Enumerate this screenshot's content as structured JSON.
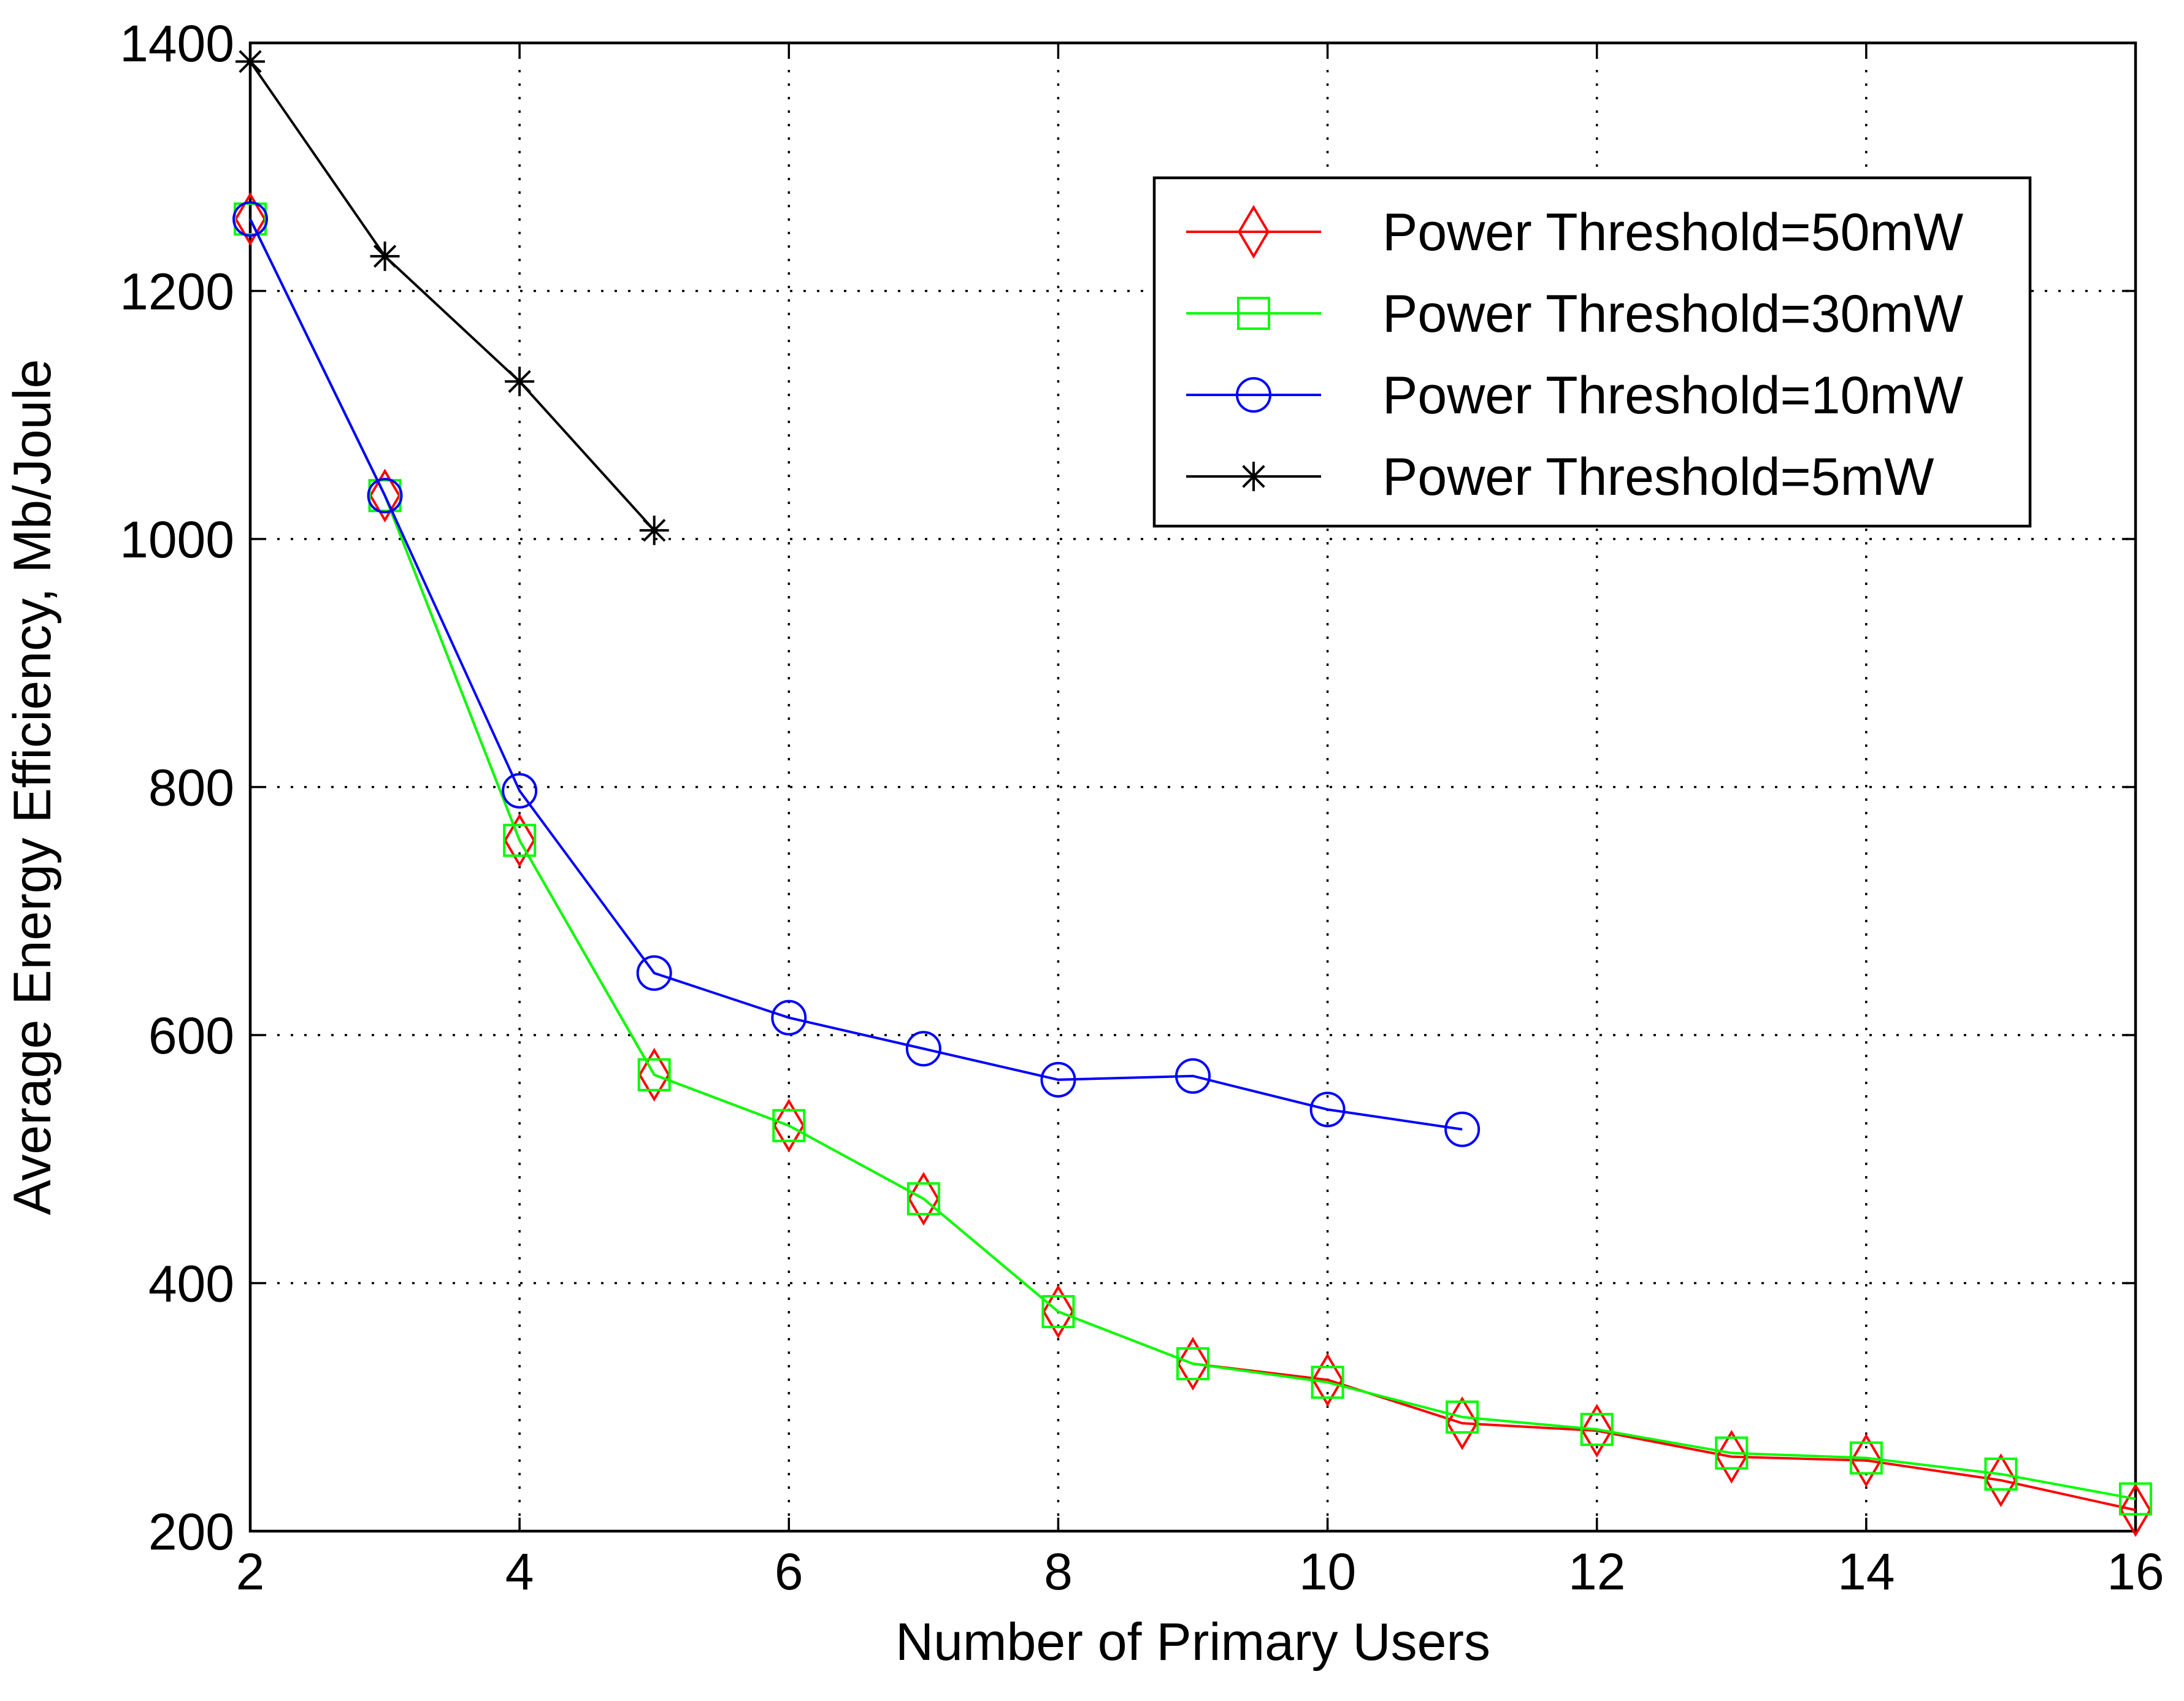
{
  "chart_data": {
    "type": "line",
    "title": "",
    "xlabel": "Number of Primary Users",
    "ylabel": "Average Energy Efficiency, Mb/Joule",
    "xlim": [
      2,
      16
    ],
    "ylim": [
      200,
      1400
    ],
    "xticks": [
      2,
      4,
      6,
      8,
      10,
      12,
      14,
      16
    ],
    "yticks": [
      200,
      400,
      600,
      800,
      1000,
      1200,
      1400
    ],
    "grid": true,
    "legend_position": "top-right",
    "series": [
      {
        "name": "Power Threshold=50mW",
        "color": "#ff0000",
        "marker": "diamond",
        "x": [
          2,
          3,
          4,
          5,
          6,
          7,
          8,
          9,
          10,
          11,
          12,
          13,
          14,
          15,
          16
        ],
        "y": [
          1258,
          1035,
          757,
          568,
          527,
          468,
          377,
          335,
          322,
          287,
          281,
          260,
          257,
          241,
          217
        ]
      },
      {
        "name": "Power Threshold=30mW",
        "color": "#00ff00",
        "marker": "square",
        "x": [
          2,
          3,
          4,
          5,
          6,
          7,
          8,
          9,
          10,
          11,
          12,
          13,
          14,
          15,
          16
        ],
        "y": [
          1258,
          1035,
          757,
          568,
          527,
          468,
          377,
          335,
          320,
          292,
          282,
          263,
          259,
          246,
          226
        ]
      },
      {
        "name": "Power Threshold=10mW",
        "color": "#0000ff",
        "marker": "circle",
        "x": [
          2,
          3,
          4,
          5,
          6,
          7,
          8,
          9,
          10,
          11
        ],
        "y": [
          1258,
          1035,
          797,
          650,
          614,
          589,
          564,
          567,
          540,
          524
        ]
      },
      {
        "name": "Power Threshold=5mW",
        "color": "#000000",
        "marker": "asterisk",
        "x": [
          2,
          3,
          4,
          5
        ],
        "y": [
          1385,
          1228,
          1127,
          1007
        ]
      }
    ]
  }
}
